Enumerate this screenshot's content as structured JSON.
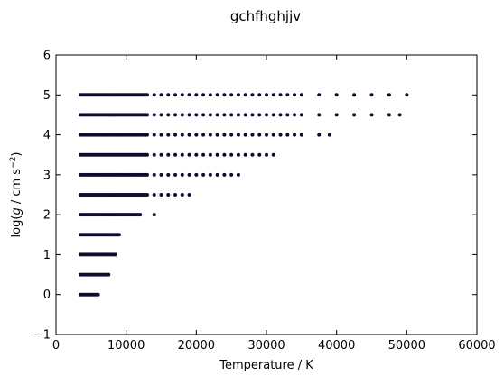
{
  "chart_data": {
    "type": "scatter",
    "title": "gchfhghjjv",
    "xlabel": "Temperature / K",
    "ylabel_parts": [
      "log(",
      "g",
      " / cm s",
      "−2",
      ")"
    ],
    "xlim": [
      0,
      60000
    ],
    "ylim": [
      -1,
      6
    ],
    "xticks": [
      0,
      10000,
      20000,
      30000,
      40000,
      50000,
      60000
    ],
    "yticks": [
      -1,
      0,
      1,
      2,
      3,
      4,
      5,
      6
    ],
    "grid": false,
    "marker_color": "#0c0c2e",
    "series": [
      {
        "logg": 5.0,
        "dense_range": [
          3500,
          13000
        ],
        "sparse": [
          14000,
          15000,
          16000,
          17000,
          18000,
          19000,
          20000,
          21000,
          22000,
          23000,
          24000,
          25000,
          26000,
          27000,
          28000,
          29000,
          30000,
          31000,
          32000,
          33000,
          34000,
          35000,
          37500,
          40000,
          42500,
          45000,
          47500,
          50000
        ]
      },
      {
        "logg": 4.5,
        "dense_range": [
          3500,
          13000
        ],
        "sparse": [
          14000,
          15000,
          16000,
          17000,
          18000,
          19000,
          20000,
          21000,
          22000,
          23000,
          24000,
          25000,
          26000,
          27000,
          28000,
          29000,
          30000,
          31000,
          32000,
          33000,
          34000,
          35000,
          37500,
          40000,
          42500,
          45000,
          47500,
          49000
        ]
      },
      {
        "logg": 4.0,
        "dense_range": [
          3500,
          13000
        ],
        "sparse": [
          14000,
          15000,
          16000,
          17000,
          18000,
          19000,
          20000,
          21000,
          22000,
          23000,
          24000,
          25000,
          26000,
          27000,
          28000,
          29000,
          30000,
          31000,
          32000,
          33000,
          34000,
          35000,
          37500,
          39000
        ]
      },
      {
        "logg": 3.5,
        "dense_range": [
          3500,
          13000
        ],
        "sparse": [
          14000,
          15000,
          16000,
          17000,
          18000,
          19000,
          20000,
          21000,
          22000,
          23000,
          24000,
          25000,
          26000,
          27000,
          28000,
          29000,
          30000,
          31000
        ]
      },
      {
        "logg": 3.0,
        "dense_range": [
          3500,
          13000
        ],
        "sparse": [
          14000,
          15000,
          16000,
          17000,
          18000,
          19000,
          20000,
          21000,
          22000,
          23000,
          24000,
          25000,
          26000
        ]
      },
      {
        "logg": 2.5,
        "dense_range": [
          3500,
          13000
        ],
        "sparse": [
          14000,
          15000,
          16000,
          17000,
          18000,
          19000
        ]
      },
      {
        "logg": 2.0,
        "dense_range": [
          3500,
          12000
        ],
        "sparse": [
          14000
        ]
      },
      {
        "logg": 1.5,
        "dense_range": [
          3500,
          9000
        ],
        "sparse": []
      },
      {
        "logg": 1.0,
        "dense_range": [
          3500,
          8500
        ],
        "sparse": []
      },
      {
        "logg": 0.5,
        "dense_range": [
          3500,
          7500
        ],
        "sparse": []
      },
      {
        "logg": 0.0,
        "dense_range": [
          3500,
          6000
        ],
        "sparse": []
      }
    ]
  }
}
